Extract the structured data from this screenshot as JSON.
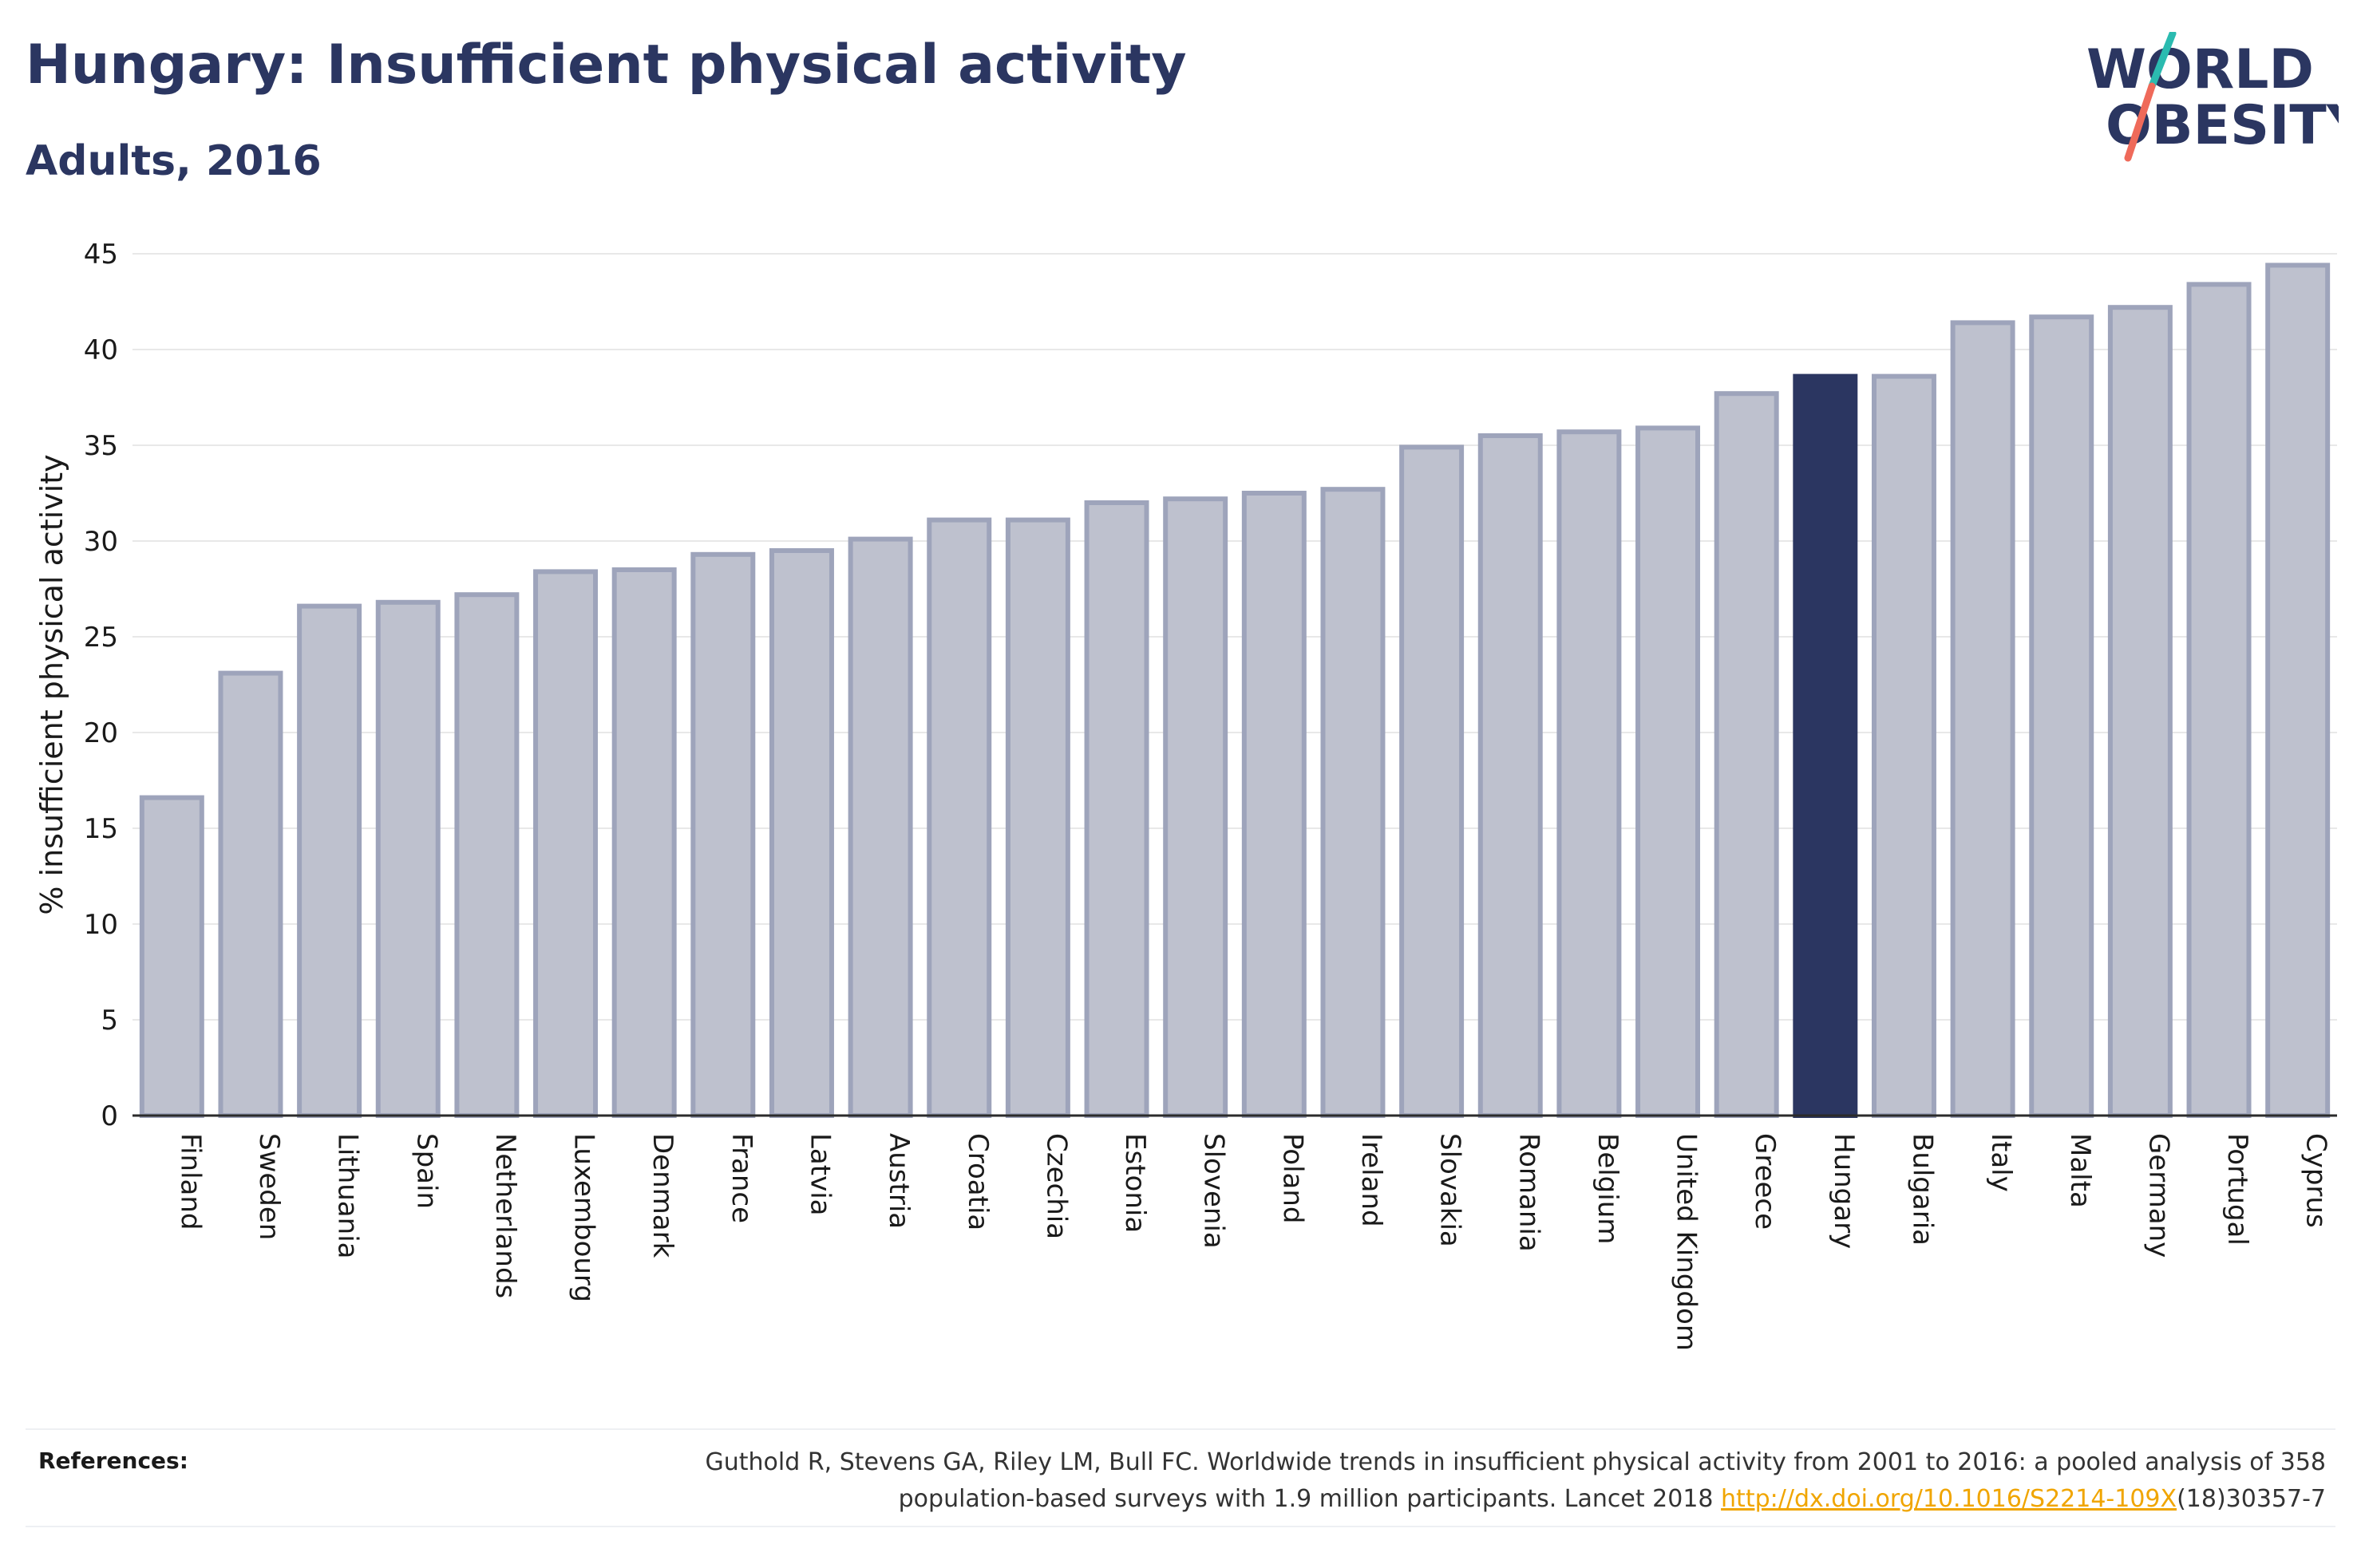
{
  "header": {
    "title": "Hungary: Insufficient physical activity",
    "subtitle": "Adults, 2016"
  },
  "logo": {
    "line1": "WORLD",
    "line2": "OBESITY"
  },
  "colors": {
    "highlight": "#2b3661",
    "bar_fill": "#bec1ce",
    "bar_stroke": "#9ea4bb",
    "text": "#2b3661",
    "link": "#f0a500",
    "logo_teal": "#2bbbb0",
    "logo_coral": "#ef6a5a"
  },
  "chart_data": {
    "type": "bar",
    "title": "Hungary: Insufficient physical activity",
    "subtitle": "Adults, 2016",
    "xlabel": "",
    "ylabel": "% insufficient physical activity",
    "ylim": [
      0,
      45
    ],
    "yticks": [
      0,
      5,
      10,
      15,
      20,
      25,
      30,
      35,
      40,
      45
    ],
    "grid": true,
    "highlight": "Hungary",
    "categories": [
      "Finland",
      "Sweden",
      "Lithuania",
      "Spain",
      "Netherlands",
      "Luxembourg",
      "Denmark",
      "France",
      "Latvia",
      "Austria",
      "Croatia",
      "Czechia",
      "Estonia",
      "Slovenia",
      "Poland",
      "Ireland",
      "Slovakia",
      "Romania",
      "Belgium",
      "United Kingdom",
      "Greece",
      "Hungary",
      "Bulgaria",
      "Italy",
      "Malta",
      "Germany",
      "Portugal",
      "Cyprus"
    ],
    "values": [
      16.6,
      23.1,
      26.6,
      26.8,
      27.2,
      28.4,
      28.5,
      29.3,
      29.5,
      30.1,
      31.1,
      31.1,
      32.0,
      32.2,
      32.5,
      32.7,
      34.9,
      35.5,
      35.7,
      35.9,
      37.7,
      38.6,
      38.6,
      41.4,
      41.7,
      42.2,
      43.4,
      44.4
    ]
  },
  "references": {
    "label": "References:",
    "text_before": "Guthold R, Stevens GA, Riley LM, Bull FC. Worldwide trends in insufficient physical activity from 2001 to 2016: a pooled analysis of 358 population-based surveys with 1.9 million participants. Lancet 2018 ",
    "link": "http://dx.doi.org/10.1016/S2214-109X",
    "text_after": "(18)30357-7"
  }
}
